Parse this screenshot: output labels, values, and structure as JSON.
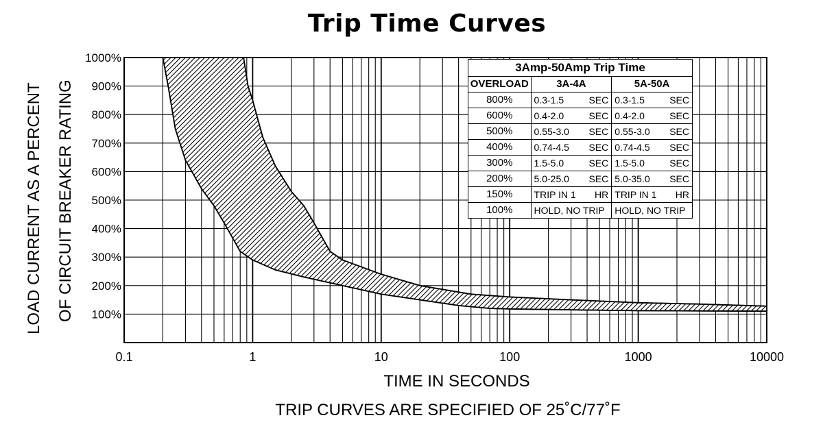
{
  "chart_data": {
    "type": "area",
    "title": "Trip Time Curves",
    "xlabel": "TIME IN SECONDS",
    "ylabel_lines": [
      "LOAD CURRENT AS A PERCENT",
      "OF CIRCUIT BREAKER RATING"
    ],
    "note": "TRIP CURVES ARE SPECIFIED OF 25˚C/77˚F",
    "x_scale": "log",
    "xlim": [
      0.1,
      10000
    ],
    "ylim": [
      0,
      1000
    ],
    "x_ticks": [
      "0.1",
      "1",
      "10",
      "100",
      "1000",
      "10000"
    ],
    "y_ticks": [
      "100%",
      "200%",
      "300%",
      "400%",
      "500%",
      "600%",
      "700%",
      "800%",
      "900%",
      "1000%"
    ],
    "grid": true,
    "series": [
      {
        "name": "",
        "role": "lower-bound",
        "points": [
          [
            0.2,
            1000
          ],
          [
            0.22,
            900
          ],
          [
            0.25,
            750
          ],
          [
            0.3,
            640
          ],
          [
            0.4,
            540
          ],
          [
            0.5,
            480
          ],
          [
            0.6,
            420
          ],
          [
            0.8,
            320
          ],
          [
            1.0,
            290
          ],
          [
            1.5,
            255
          ],
          [
            2.5,
            230
          ],
          [
            5,
            200
          ],
          [
            10,
            170
          ],
          [
            20,
            150
          ],
          [
            40,
            130
          ],
          [
            70,
            120
          ],
          [
            100,
            118
          ],
          [
            300,
            115
          ],
          [
            1000,
            112
          ],
          [
            10000,
            110
          ]
        ]
      },
      {
        "name": "",
        "role": "upper-bound",
        "points": [
          [
            0.85,
            1000
          ],
          [
            0.92,
            900
          ],
          [
            1.0,
            850
          ],
          [
            1.2,
            720
          ],
          [
            1.5,
            620
          ],
          [
            2.0,
            530
          ],
          [
            2.5,
            480
          ],
          [
            3.0,
            420
          ],
          [
            4.0,
            320
          ],
          [
            5.0,
            290
          ],
          [
            10,
            240
          ],
          [
            20,
            200
          ],
          [
            50,
            170
          ],
          [
            100,
            160
          ],
          [
            300,
            150
          ],
          [
            1000,
            140
          ],
          [
            3000,
            135
          ],
          [
            10000,
            128
          ]
        ]
      }
    ]
  },
  "table": {
    "title": "3Amp-50Amp Trip Time",
    "headers": [
      "OVERLOAD",
      "3A-4A",
      "5A-50A"
    ],
    "rows": [
      {
        "overload": "800%",
        "a": [
          "0.3-1.5",
          "SEC"
        ],
        "b": [
          "0.3-1.5",
          "SEC"
        ]
      },
      {
        "overload": "600%",
        "a": [
          "0.4-2.0",
          "SEC"
        ],
        "b": [
          "0.4-2.0",
          "SEC"
        ]
      },
      {
        "overload": "500%",
        "a": [
          "0.55-3.0",
          "SEC"
        ],
        "b": [
          "0.55-3.0",
          "SEC"
        ]
      },
      {
        "overload": "400%",
        "a": [
          "0.74-4.5",
          "SEC"
        ],
        "b": [
          "0.74-4.5",
          "SEC"
        ]
      },
      {
        "overload": "300%",
        "a": [
          "1.5-5.0",
          "SEC"
        ],
        "b": [
          "1.5-5.0",
          "SEC"
        ]
      },
      {
        "overload": "200%",
        "a": [
          "5.0-25.0",
          "SEC"
        ],
        "b": [
          "5.0-35.0",
          "SEC"
        ]
      },
      {
        "overload": "150%",
        "a": [
          "TRIP IN 1",
          "HR"
        ],
        "b": [
          "TRIP IN 1",
          "HR"
        ]
      },
      {
        "overload": "100%",
        "a": [
          "HOLD, NO TRIP",
          ""
        ],
        "b": [
          "HOLD, NO TRIP",
          ""
        ]
      }
    ]
  }
}
